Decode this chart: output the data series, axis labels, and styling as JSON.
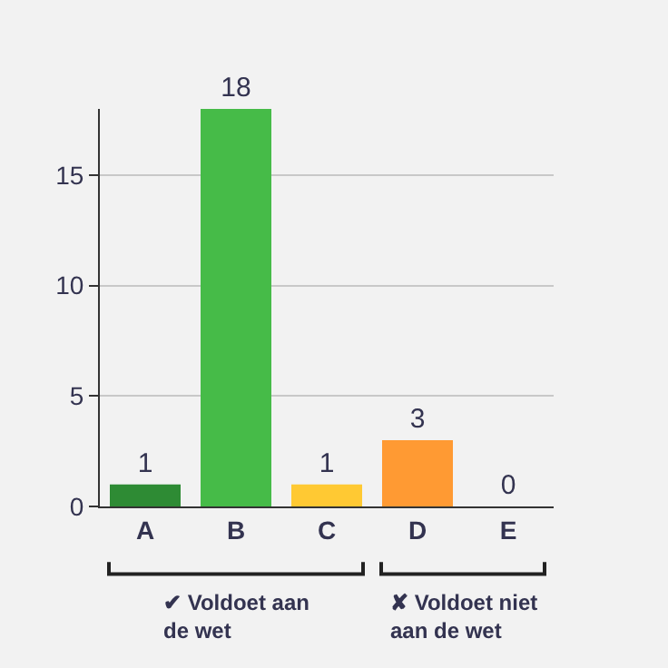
{
  "chart_data": {
    "type": "bar",
    "categories": [
      "A",
      "B",
      "C",
      "D",
      "E"
    ],
    "values": [
      1,
      18,
      1,
      3,
      0
    ],
    "colors": [
      "#2e8b34",
      "#46bb48",
      "#ffc933",
      "#ff9a33",
      "#ff9a33"
    ],
    "ylim": [
      0,
      18
    ],
    "yticks": [
      0,
      5,
      10,
      15
    ],
    "grid": "y",
    "data_labels": true,
    "annotations": [
      "✔ Voldoet aan\nde wet",
      "✘ Voldoet niet\naan de wet"
    ]
  }
}
